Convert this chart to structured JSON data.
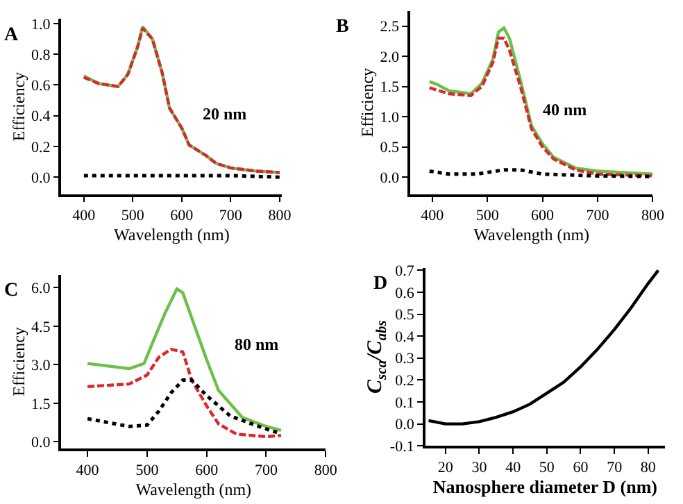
{
  "chart_data": [
    {
      "type": "line",
      "title": "A",
      "xlabel": "Wavelength (nm)",
      "ylabel": "Efficiency",
      "annotations": [
        "20 nm"
      ],
      "xlim": [
        354,
        805
      ],
      "ylim": [
        -0.11,
        1.03
      ],
      "xticks": [
        400,
        500,
        600,
        700,
        800
      ],
      "yticks": [
        {
          "value": 0,
          "label": "0.0"
        },
        0.2,
        0.4,
        0.6,
        0.8,
        {
          "value": 1,
          "label": "1.0"
        }
      ],
      "series": [
        {
          "color": "#6cc04a",
          "line_style": "solid",
          "x": [
            400,
            430,
            470,
            490,
            510,
            520,
            540,
            560,
            575,
            600,
            615,
            650,
            670,
            700,
            750,
            800
          ],
          "values": [
            0.66,
            0.61,
            0.59,
            0.67,
            0.85,
            0.98,
            0.9,
            0.68,
            0.45,
            0.32,
            0.21,
            0.14,
            0.09,
            0.06,
            0.04,
            0.03
          ]
        },
        {
          "color": "#d9282f",
          "line_style": "dashed",
          "x": [
            400,
            430,
            470,
            490,
            510,
            520,
            540,
            560,
            575,
            600,
            615,
            650,
            670,
            700,
            750,
            800
          ],
          "values": [
            0.65,
            0.61,
            0.59,
            0.67,
            0.85,
            0.97,
            0.9,
            0.68,
            0.45,
            0.32,
            0.21,
            0.14,
            0.09,
            0.06,
            0.04,
            0.03
          ]
        },
        {
          "color": "#000000",
          "line_style": "dotted",
          "x": [
            400,
            500,
            600,
            700,
            800
          ],
          "values": [
            0.01,
            0.01,
            0.01,
            0.01,
            0.0
          ]
        }
      ]
    },
    {
      "type": "line",
      "title": "B",
      "xlabel": "Wavelength (nm)",
      "ylabel": "Efficiency",
      "annotations": [
        "40 nm"
      ],
      "xlim": [
        360,
        800
      ],
      "ylim": [
        -0.28,
        2.75
      ],
      "xticks": [
        400,
        500,
        600,
        700,
        800
      ],
      "yticks": [
        {
          "value": 0,
          "label": "0.0"
        },
        0.5,
        {
          "value": 1,
          "label": "1.0"
        },
        1.5,
        {
          "value": 2,
          "label": "2.0"
        },
        2.5
      ],
      "series": [
        {
          "color": "#6cc04a",
          "line_style": "solid",
          "x": [
            395,
            410,
            430,
            470,
            490,
            510,
            520,
            530,
            540,
            560,
            580,
            600,
            620,
            660,
            700,
            800
          ],
          "values": [
            1.58,
            1.53,
            1.43,
            1.38,
            1.55,
            1.95,
            2.4,
            2.47,
            2.3,
            1.6,
            0.85,
            0.55,
            0.33,
            0.15,
            0.1,
            0.05
          ]
        },
        {
          "color": "#d9282f",
          "line_style": "dashed",
          "x": [
            395,
            430,
            470,
            490,
            510,
            520,
            530,
            540,
            560,
            580,
            600,
            620,
            660,
            700,
            800
          ],
          "values": [
            1.48,
            1.38,
            1.35,
            1.5,
            1.9,
            2.3,
            2.3,
            2.1,
            1.5,
            0.8,
            0.5,
            0.3,
            0.12,
            0.05,
            0.02
          ]
        },
        {
          "color": "#000000",
          "line_style": "dotted",
          "x": [
            395,
            430,
            480,
            530,
            560,
            600,
            700,
            800
          ],
          "values": [
            0.1,
            0.05,
            0.05,
            0.12,
            0.12,
            0.05,
            0.02,
            0.01
          ]
        }
      ]
    },
    {
      "type": "line",
      "title": "C",
      "xlabel": "Wavelength (nm)",
      "ylabel": "Efficiency",
      "annotations": [
        "80 nm"
      ],
      "xlim": [
        356,
        800
      ],
      "ylim": [
        -0.26,
        6.5
      ],
      "xticks": [
        400,
        500,
        600,
        700,
        800
      ],
      "yticks": [
        {
          "value": 0,
          "label": "0.0"
        },
        1.5,
        {
          "value": 3,
          "label": "3.0"
        },
        4.5,
        {
          "value": 6,
          "label": "6.0"
        }
      ],
      "series": [
        {
          "color": "#6cc04a",
          "line_style": "solid",
          "x": [
            400,
            470,
            495,
            510,
            530,
            550,
            560,
            580,
            600,
            620,
            660,
            700,
            725
          ],
          "values": [
            3.05,
            2.85,
            3.05,
            3.9,
            5.0,
            5.95,
            5.8,
            4.5,
            3.2,
            2.0,
            0.95,
            0.6,
            0.45
          ]
        },
        {
          "color": "#d9282f",
          "line_style": "dashed",
          "x": [
            400,
            470,
            500,
            520,
            540,
            560,
            575,
            600,
            620,
            650,
            700,
            725
          ],
          "values": [
            2.15,
            2.25,
            2.6,
            3.3,
            3.6,
            3.5,
            2.4,
            1.4,
            0.7,
            0.3,
            0.2,
            0.25
          ]
        },
        {
          "color": "#000000",
          "line_style": "dotted",
          "x": [
            400,
            470,
            500,
            520,
            540,
            560,
            575,
            600,
            640,
            700,
            720
          ],
          "values": [
            0.9,
            0.6,
            0.65,
            1.2,
            1.9,
            2.4,
            2.4,
            1.8,
            1.0,
            0.5,
            0.35
          ]
        }
      ]
    },
    {
      "type": "line",
      "title": "D",
      "xlabel": "Nanosphere diameter D (nm)",
      "ylabel": "C$_{sca}$/C$_{abs}$",
      "xlim": [
        14,
        85
      ],
      "ylim": [
        -0.1,
        0.71
      ],
      "xticks": [
        20,
        30,
        40,
        50,
        60,
        70,
        80
      ],
      "yticks": [
        -0.1,
        {
          "value": 0,
          "label": "0.0"
        },
        0.1,
        0.2,
        0.3,
        0.4,
        0.5,
        0.6,
        0.7
      ],
      "series": [
        {
          "color": "#000000",
          "line_style": "solid",
          "x": [
            15,
            20,
            25,
            30,
            35,
            40,
            45,
            50,
            55,
            60,
            65,
            70,
            75,
            80,
            83
          ],
          "values": [
            0.015,
            0.0,
            0.0,
            0.01,
            0.03,
            0.055,
            0.09,
            0.14,
            0.19,
            0.26,
            0.34,
            0.43,
            0.53,
            0.64,
            0.7
          ]
        }
      ]
    }
  ]
}
